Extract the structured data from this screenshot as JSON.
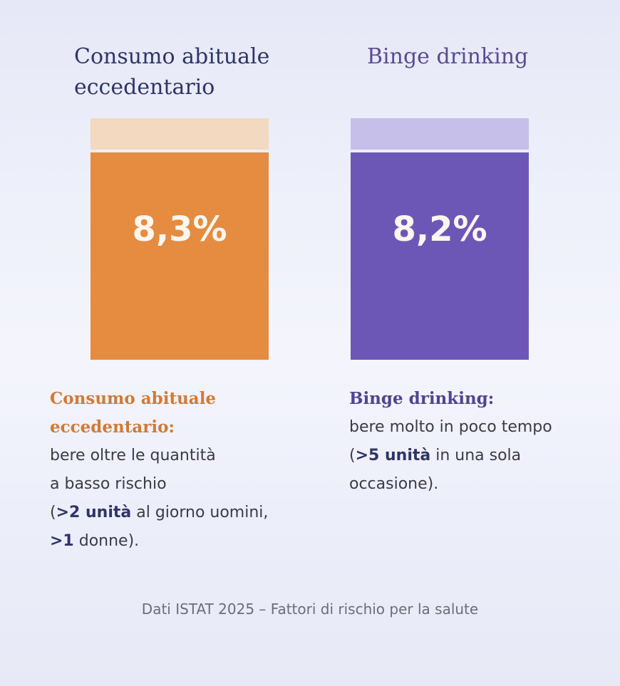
{
  "chart_data": {
    "type": "bar",
    "categories": [
      "Consumo abituale eccedentario",
      "Binge drinking"
    ],
    "values": [
      8.3,
      8.2
    ],
    "value_labels": [
      "8,3%",
      "8,2%"
    ],
    "colors": [
      "#e58c40",
      "#6d57b6"
    ]
  },
  "left": {
    "title_line1": "Consumo abituale",
    "title_line2": "eccedentario",
    "value_label": "8,3%",
    "desc_title_line1": "Consumo abituale",
    "desc_title_line2": "eccedentario:",
    "desc_line1": "bere oltre le quantità",
    "desc_line2": "a basso rischio",
    "desc_line3_pre": "(",
    "desc_line3_bold": ">2 unità",
    "desc_line3_post": " al giorno uomini,",
    "desc_line4_bold": ">1",
    "desc_line4_post": " donne)."
  },
  "right": {
    "title": "Binge drinking",
    "value_label": "8,2%",
    "desc_title": "Binge drinking:",
    "desc_line1": "bere molto in poco tempo",
    "desc_line2_pre": "(",
    "desc_line2_bold": ">5 unità",
    "desc_line2_post": " in una sola",
    "desc_line3": "occasione)."
  },
  "source": "Dati ISTAT 2025 – Fattori di rischio per la salute"
}
